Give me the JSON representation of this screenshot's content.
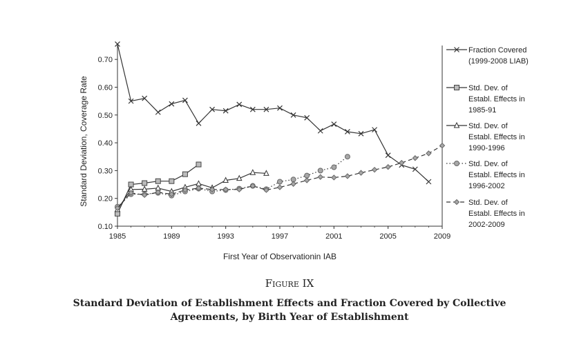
{
  "chart_data": {
    "type": "line",
    "xlabel": "First Year of Observationin IAB",
    "ylabel": "Standard Deviation, Coverage Rate",
    "xlim": [
      1985,
      2009
    ],
    "ylim": [
      0.1,
      0.75
    ],
    "xticks": [
      "1985",
      "1989",
      "1993",
      "1997",
      "2001",
      "2005",
      "2009"
    ],
    "yticks": [
      "0.10",
      "0.20",
      "0.30",
      "0.40",
      "0.50",
      "0.60",
      "0.70"
    ],
    "legend_position": "right",
    "series": [
      {
        "name": "Fraction Covered (1999-2008 LIAB)",
        "legend_lines": [
          "Fraction Covered",
          "(1999-2008 LIAB)"
        ],
        "marker": "x",
        "dash": "solid",
        "color": "#333333",
        "x": [
          1985,
          1986,
          1987,
          1988,
          1989,
          1990,
          1991,
          1992,
          1993,
          1994,
          1995,
          1996,
          1997,
          1998,
          1999,
          2000,
          2001,
          2002,
          2003,
          2004,
          2005,
          2006,
          2007,
          2008
        ],
        "y": [
          0.755,
          0.55,
          0.56,
          0.51,
          0.54,
          0.553,
          0.47,
          0.52,
          0.515,
          0.538,
          0.52,
          0.52,
          0.525,
          0.5,
          0.49,
          0.443,
          0.467,
          0.44,
          0.433,
          0.447,
          0.355,
          0.32,
          0.305,
          0.26
        ]
      },
      {
        "name": "Std. Dev. of Establ. Effects in 1985-91",
        "legend_lines": [
          "Std. Dev. of",
          "Establ. Effects in",
          "1985-91"
        ],
        "marker": "square",
        "dash": "solid",
        "color": "#333333",
        "x": [
          1985,
          1986,
          1987,
          1988,
          1989,
          1990,
          1991
        ],
        "y": [
          0.145,
          0.25,
          0.255,
          0.262,
          0.262,
          0.287,
          0.322
        ]
      },
      {
        "name": "Std. Dev. of Establ. Effects in 1990-1996",
        "legend_lines": [
          "Std. Dev. of",
          "Establ. Effects in",
          "1990-1996"
        ],
        "marker": "triangle",
        "dash": "solid",
        "color": "#333333",
        "x": [
          1985,
          1986,
          1987,
          1988,
          1989,
          1990,
          1991,
          1992,
          1993,
          1994,
          1995,
          1996
        ],
        "y": [
          0.16,
          0.232,
          0.233,
          0.237,
          0.225,
          0.24,
          0.253,
          0.238,
          0.265,
          0.272,
          0.293,
          0.29
        ]
      },
      {
        "name": "Std. Dev. of Establ. Effects in 1996-2002",
        "legend_lines": [
          "Std. Dev. of",
          "Establ. Effects in",
          "1996-2002"
        ],
        "marker": "circle",
        "dash": "dotted",
        "color": "#333333",
        "x": [
          1985,
          1986,
          1987,
          1988,
          1989,
          1990,
          1991,
          1992,
          1993,
          1994,
          1995,
          1996,
          1997,
          1998,
          1999,
          2000,
          2001,
          2002
        ],
        "y": [
          0.17,
          0.215,
          0.215,
          0.22,
          0.21,
          0.225,
          0.235,
          0.225,
          0.23,
          0.235,
          0.245,
          0.233,
          0.26,
          0.268,
          0.282,
          0.3,
          0.312,
          0.35
        ]
      },
      {
        "name": "Std. Dev. of Establ. Effects in 2002-2009",
        "legend_lines": [
          "Std. Dev. of",
          "Establ. Effects in",
          "2002-2009"
        ],
        "marker": "diamond",
        "dash": "dashed",
        "color": "#333333",
        "x": [
          1985,
          1986,
          1987,
          1988,
          1989,
          1990,
          1991,
          1992,
          1993,
          1994,
          1995,
          1996,
          1997,
          1998,
          1999,
          2000,
          2001,
          2002,
          2003,
          2004,
          2005,
          2006,
          2007,
          2008,
          2009
        ],
        "y": [
          0.165,
          0.22,
          0.212,
          0.222,
          0.215,
          0.23,
          0.237,
          0.232,
          0.232,
          0.232,
          0.245,
          0.23,
          0.24,
          0.252,
          0.265,
          0.277,
          0.275,
          0.28,
          0.292,
          0.303,
          0.313,
          0.328,
          0.345,
          0.362,
          0.39
        ]
      }
    ]
  },
  "caption": {
    "label": "Figure IX",
    "title": "Standard Deviation of Establishment Effects and Fraction Covered by Collective Agreements, by Birth Year of Establishment"
  }
}
